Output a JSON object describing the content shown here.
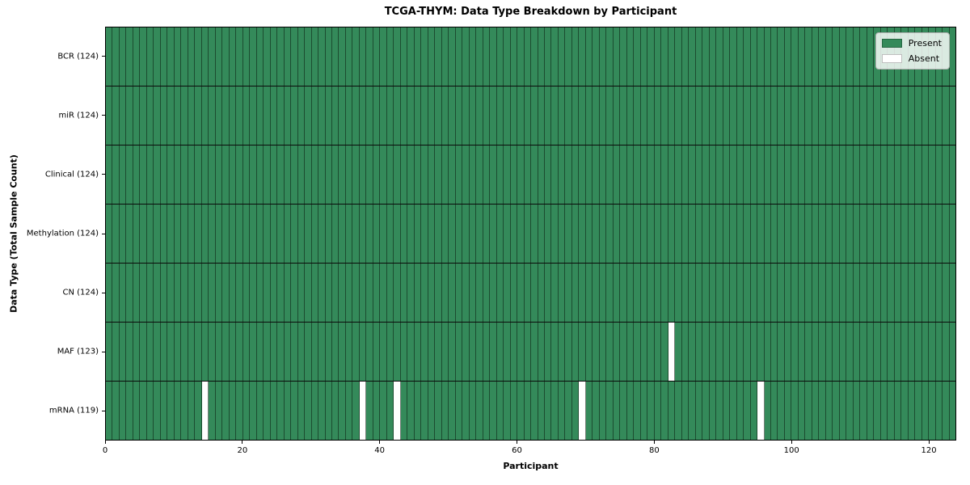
{
  "chart_data": {
    "type": "heatmap",
    "title": "TCGA-THYM: Data Type Breakdown by Participant",
    "xlabel": "Participant",
    "ylabel": "Data Type (Total Sample Count)",
    "n_participants": 124,
    "xlim": [
      0,
      124
    ],
    "x_ticks": [
      0,
      20,
      40,
      60,
      80,
      100,
      120
    ],
    "rows": [
      {
        "name": "BCR",
        "label": "BCR (124)",
        "total": 124,
        "absent_participants": []
      },
      {
        "name": "miR",
        "label": "miR (124)",
        "total": 124,
        "absent_participants": []
      },
      {
        "name": "Clinical",
        "label": "Clinical (124)",
        "total": 124,
        "absent_participants": []
      },
      {
        "name": "Methylation",
        "label": "Methylation (124)",
        "total": 124,
        "absent_participants": []
      },
      {
        "name": "CN",
        "label": "CN (124)",
        "total": 124,
        "absent_participants": []
      },
      {
        "name": "MAF",
        "label": "MAF (123)",
        "total": 123,
        "absent_participants": [
          82
        ]
      },
      {
        "name": "mRNA",
        "label": "mRNA (119)",
        "total": 119,
        "absent_participants": [
          14,
          37,
          42,
          69,
          95
        ]
      }
    ],
    "legend": {
      "position": "upper right",
      "entries": [
        {
          "label": "Present",
          "color": "#348a5a"
        },
        {
          "label": "Absent",
          "color": "#ffffff"
        }
      ]
    },
    "colors": {
      "present": "#348a5a",
      "absent": "#ffffff",
      "cell_edge": "rgba(10,25,15,0.55)",
      "row_separator": "#0b0b0b"
    },
    "grid": false
  }
}
